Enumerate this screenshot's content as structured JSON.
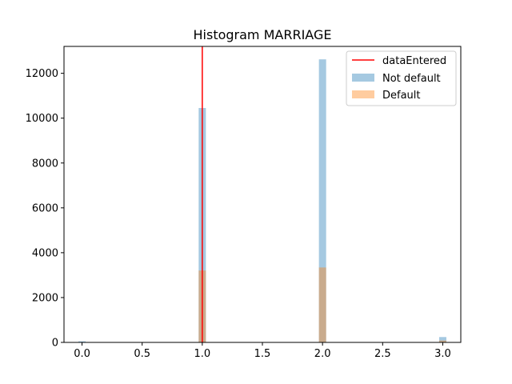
{
  "chart_data": {
    "type": "bar",
    "title": "Histogram MARRIAGE",
    "xlabel": "",
    "ylabel": "",
    "xlim": [
      -0.15,
      3.15
    ],
    "ylim": [
      0,
      13200
    ],
    "xticks": [
      0.0,
      0.5,
      1.0,
      1.5,
      2.0,
      2.5,
      3.0
    ],
    "xtick_labels": [
      "0.0",
      "0.5",
      "1.0",
      "1.5",
      "2.0",
      "2.5",
      "3.0"
    ],
    "yticks": [
      0,
      2000,
      4000,
      6000,
      8000,
      10000,
      12000
    ],
    "ytick_labels": [
      "0",
      "2000",
      "4000",
      "6000",
      "8000",
      "10000",
      "12000"
    ],
    "bin_width": 0.06,
    "series": [
      {
        "name": "Not default",
        "color": "#1f77b4",
        "opacity": 0.4,
        "bars": [
          {
            "x": 0,
            "value": 49
          },
          {
            "x": 1,
            "value": 10453
          },
          {
            "x": 2,
            "value": 12623
          },
          {
            "x": 3,
            "value": 239
          }
        ]
      },
      {
        "name": "Default",
        "color": "#ff7f0e",
        "opacity": 0.4,
        "bars": [
          {
            "x": 0,
            "value": 5
          },
          {
            "x": 1,
            "value": 3206
          },
          {
            "x": 2,
            "value": 3341
          },
          {
            "x": 3,
            "value": 84
          }
        ]
      }
    ],
    "vline": {
      "name": "dataEntered",
      "x": 1.0,
      "color": "#ff0000"
    },
    "legend": {
      "placement": "top-right",
      "entries": [
        "dataEntered",
        "Not default",
        "Default"
      ]
    },
    "grid": false
  }
}
